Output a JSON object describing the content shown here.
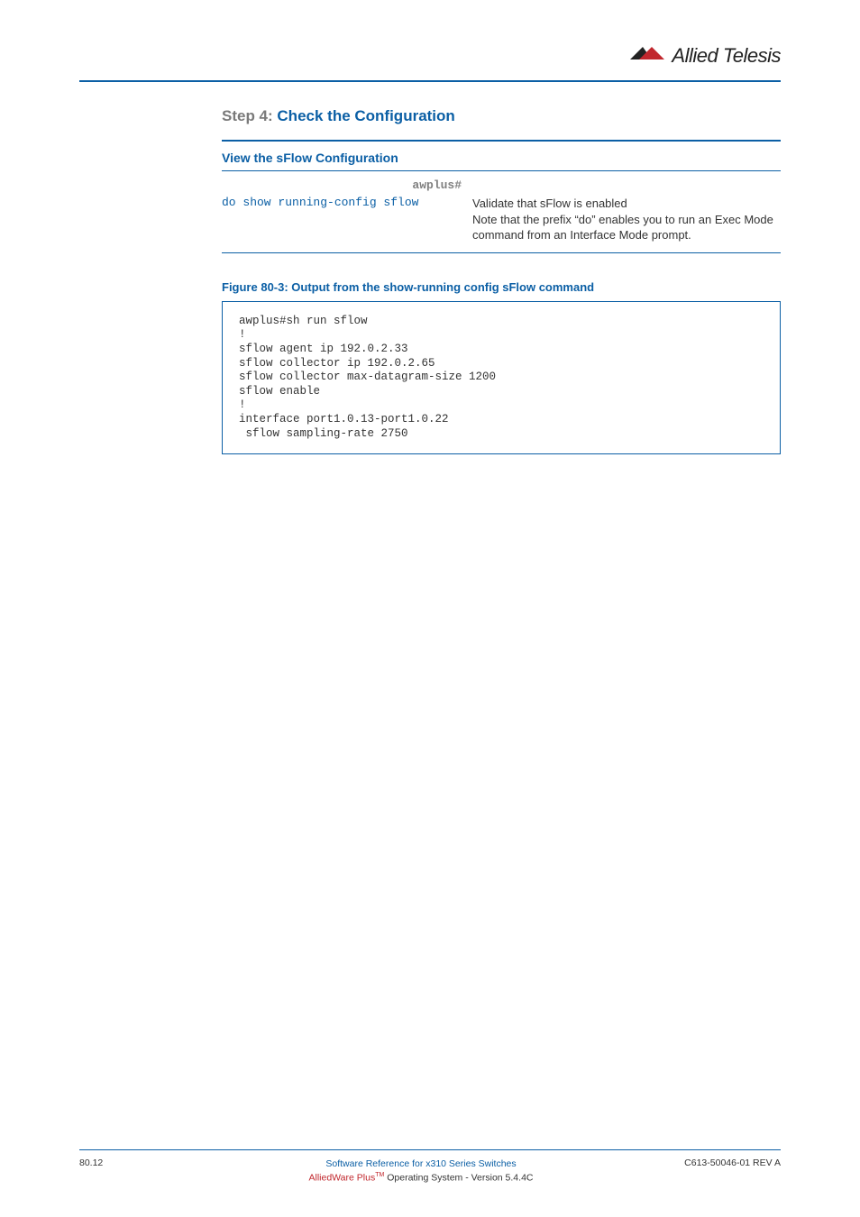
{
  "brand": {
    "name": "Allied Telesis",
    "logo_triangle_fill": "#c1272d",
    "logo_triangle_stroke": "#222222"
  },
  "colors": {
    "rule_blue": "#0b5fa5",
    "text_gray": "#7a7a7a",
    "code_gray": "#808080",
    "brand_red": "#c1272d"
  },
  "step": {
    "label": "Step 4: ",
    "title": "Check the Configuration"
  },
  "section": {
    "title": "View the sFlow Configuration"
  },
  "table": {
    "prompt": "awplus#",
    "command": "do show running-config sflow",
    "description": "Validate that sFlow is enabled\nNote that the prefix “do” enables you to run an Exec Mode command from an Interface Mode prompt."
  },
  "figure": {
    "caption": "Figure 80-3: Output from the show-running config sFlow command",
    "code": "awplus#sh run sflow\n!\nsflow agent ip 192.0.2.33\nsflow collector ip 192.0.2.65\nsflow collector max-datagram-size 1200\nsflow enable\n!\ninterface port1.0.13-port1.0.22\n sflow sampling-rate 2750"
  },
  "footer": {
    "page": "80.12",
    "line1": "Software Reference for x310 Series Switches",
    "line2_brand": "AlliedWare Plus",
    "line2_tm": "TM",
    "line2_rest": " Operating System  - Version 5.4.4C",
    "rev": "C613-50046-01 REV A"
  }
}
